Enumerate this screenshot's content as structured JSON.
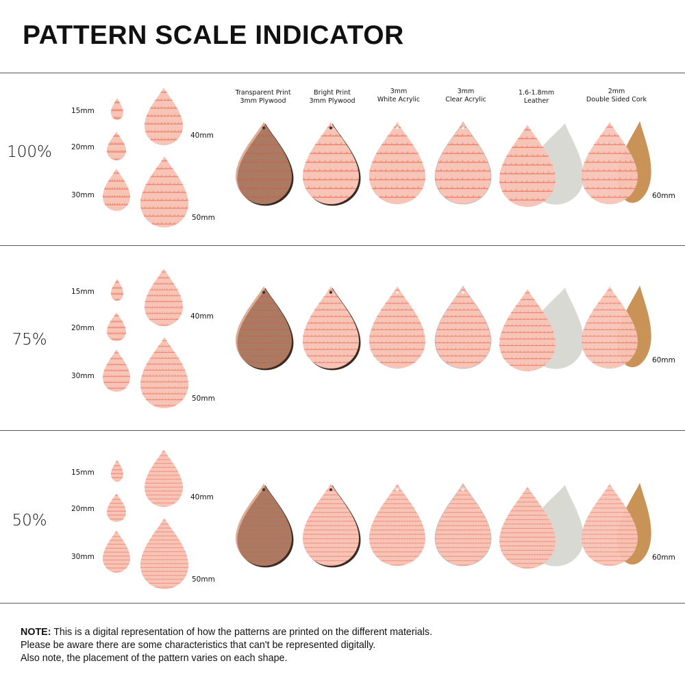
{
  "title": "PATTERN SCALE INDICATOR",
  "materials": [
    {
      "line1": "Transparent Print",
      "line2": "3mm Plywood",
      "kind": "plywood-transparent"
    },
    {
      "line1": "Bright Print",
      "line2": "3mm Plywood",
      "kind": "plywood-bright"
    },
    {
      "line1": "3mm",
      "line2": "White Acrylic",
      "kind": "white-acrylic"
    },
    {
      "line1": "3mm",
      "line2": "Clear Acrylic",
      "kind": "clear-acrylic"
    },
    {
      "line1": "1.6-1.8mm",
      "line2": "Leather",
      "kind": "leather"
    },
    {
      "line1": "2mm",
      "line2": "Double Sided Cork",
      "kind": "cork"
    }
  ],
  "sections": [
    {
      "percent": "100%",
      "pattern_scale": 1.0
    },
    {
      "percent": "75%",
      "pattern_scale": 0.75
    },
    {
      "percent": "50%",
      "pattern_scale": 0.5
    }
  ],
  "sizes": {
    "s15": "15mm",
    "s20": "20mm",
    "s30": "30mm",
    "s40": "40mm",
    "s50": "50mm",
    "s60": "60mm"
  },
  "note": {
    "bold": "NOTE:",
    "line1": " This is a digital representation of how the patterns are printed on the different materials.",
    "line2": "Please be aware there are some characteristics that can't be represented digitally.",
    "line3": "Also note, the placement of the pattern varies on each shape."
  },
  "colors": {
    "pattern_bg": "#f7c4b8",
    "pattern_line": "#ef7a60",
    "plywood": "#cf9677",
    "leather_back": "#d9d9d4",
    "cork_back": "#c99357"
  }
}
